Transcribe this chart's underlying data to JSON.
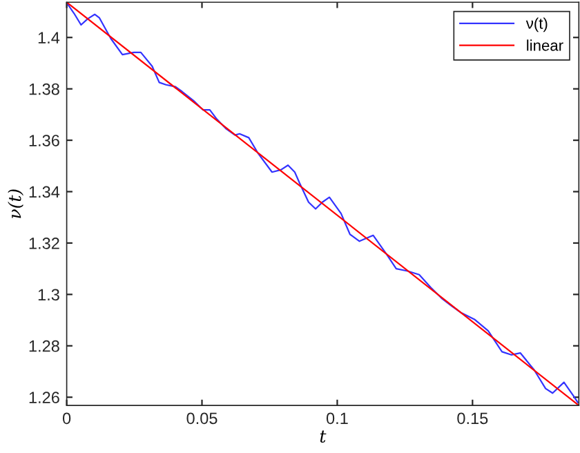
{
  "chart_data": {
    "type": "line",
    "xlabel": "t",
    "ylabel": "ν(t)",
    "xlim": [
      0,
      0.1893
    ],
    "ylim": [
      1.2568,
      1.4137
    ],
    "xticks": [
      0,
      0.05,
      0.1,
      0.15
    ],
    "yticks": [
      1.26,
      1.28,
      1.3,
      1.32,
      1.34,
      1.36,
      1.38,
      1.4
    ],
    "grid": false,
    "legend": "top right",
    "marker": "none",
    "line_style": "solid",
    "series": [
      {
        "name": "ν(t)",
        "color": "#3333ff",
        "x": [
          0,
          0.0027,
          0.0053,
          0.0078,
          0.0104,
          0.0121,
          0.0163,
          0.0206,
          0.0248,
          0.0274,
          0.0316,
          0.0342,
          0.0367,
          0.0402,
          0.0427,
          0.0469,
          0.0504,
          0.0529,
          0.0555,
          0.0588,
          0.0622,
          0.0639,
          0.0673,
          0.0708,
          0.0759,
          0.0792,
          0.0818,
          0.0843,
          0.0861,
          0.0894,
          0.092,
          0.0945,
          0.0971,
          0.1014,
          0.1047,
          0.1082,
          0.1133,
          0.1184,
          0.1218,
          0.126,
          0.1303,
          0.1345,
          0.1388,
          0.1422,
          0.1456,
          0.1507,
          0.1558,
          0.1609,
          0.1643,
          0.1677,
          0.1728,
          0.177,
          0.1796,
          0.1838,
          0.1872,
          0.1889
        ],
        "values": [
          1.4135,
          1.4094,
          1.4049,
          1.4073,
          1.409,
          1.4076,
          1.3996,
          1.3933,
          1.3942,
          1.3942,
          1.3888,
          1.3825,
          1.3816,
          1.3808,
          1.3789,
          1.3754,
          1.3718,
          1.3718,
          1.3682,
          1.3646,
          1.362,
          1.3625,
          1.361,
          1.3548,
          1.3476,
          1.3485,
          1.3503,
          1.3476,
          1.3433,
          1.3359,
          1.3333,
          1.3359,
          1.3378,
          1.3315,
          1.3234,
          1.3207,
          1.323,
          1.3154,
          1.31,
          1.3091,
          1.3077,
          1.3028,
          1.2983,
          1.2956,
          1.293,
          1.2903,
          1.2858,
          1.2777,
          1.2765,
          1.2772,
          1.2706,
          1.2634,
          1.2616,
          1.2658,
          1.2607,
          1.258
        ]
      },
      {
        "name": "linear",
        "color": "#ff0000",
        "x": [
          0,
          0.1893
        ],
        "values": [
          1.4137,
          1.2568
        ]
      }
    ]
  }
}
